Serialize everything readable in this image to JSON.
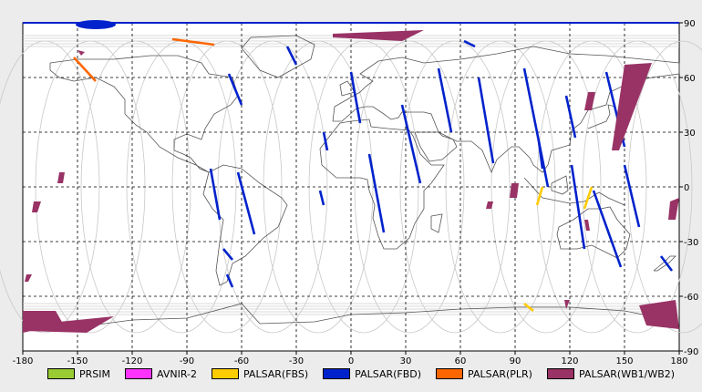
{
  "map": {
    "x_ticks": [
      "-180",
      "-150",
      "-120",
      "-90",
      "-60",
      "-30",
      "0",
      "30",
      "60",
      "90",
      "120",
      "150",
      "180"
    ],
    "y_ticks": [
      "90",
      "60",
      "30",
      "0",
      "-30",
      "-60",
      "-90"
    ]
  },
  "legend": [
    {
      "label": "PRSIM",
      "color": "#99cc33"
    },
    {
      "label": "AVNIR-2",
      "color": "#ff33ff"
    },
    {
      "label": "PALSAR(FBS)",
      "color": "#ffcc00"
    },
    {
      "label": "PALSAR(FBD)",
      "color": "#0022cc"
    },
    {
      "label": "PALSAR(PLR)",
      "color": "#ff6600"
    },
    {
      "label": "PALSAR(WB1/WB2)",
      "color": "#993366"
    }
  ]
}
